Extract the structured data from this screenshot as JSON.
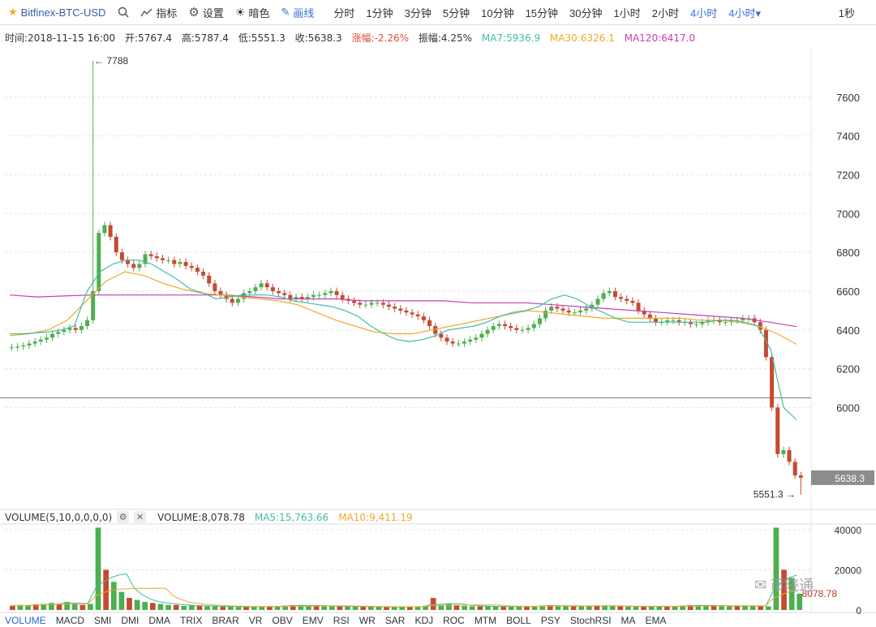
{
  "toolbar": {
    "symbol": "Bitfinex-BTC-USD",
    "buttons": [
      "指标",
      "设置",
      "暗色",
      "画线"
    ],
    "intervals": [
      "分时",
      "1分钟",
      "3分钟",
      "5分钟",
      "10分钟",
      "15分钟",
      "30分钟",
      "1小时",
      "2小时",
      "4小时",
      "4小时▾"
    ],
    "right_label": "1秒"
  },
  "info": {
    "time": "时间:2018-11-15 16:00",
    "open": "开:5767.4",
    "high": "高:5787.4",
    "low": "低:5551.3",
    "close": "收:5638.3",
    "change": "涨幅:-2.26%",
    "amplitude": "振幅:4.25%",
    "ma7": "MA7:5936.9",
    "ma30": "MA30:6326.1",
    "ma120": "MA120:6417.0"
  },
  "volume_info": {
    "label": "VOLUME(5,10,0,0,0,0)",
    "volume": "VOLUME:8,078.78",
    "ma5": "MA5:15,763.66",
    "ma10": "MA10:9,411.19"
  },
  "indicators": [
    "VOLUME",
    "MACD",
    "SMI",
    "DMI",
    "DMA",
    "TRIX",
    "BRAR",
    "VR",
    "OBV",
    "EMV",
    "RSI",
    "WR",
    "SAR",
    "KDJ",
    "ROC",
    "MTM",
    "BOLL",
    "PSY",
    "StochRSI",
    "MA",
    "EMA"
  ],
  "watermark": "币晓通",
  "colors": {
    "up": "#4caf50",
    "down": "#c64a32",
    "ma7": "#3fbfa5",
    "ma30": "#f0a828",
    "ma120": "#c83db5",
    "price_tag": "#8c8c8c"
  },
  "chart_data": [
    {
      "type": "candlestick",
      "title": "",
      "y_ticks": [
        6000,
        6200,
        6400,
        6600,
        6800,
        7000,
        7200,
        7400,
        7600
      ],
      "ylim": [
        5500,
        7850
      ],
      "grid": true,
      "max_label": "← 7788",
      "min_label": "5551.3 →",
      "last_price_label": "5638.3",
      "horizontal_line": 6050,
      "close_series": [
        6310,
        6315,
        6320,
        6330,
        6340,
        6350,
        6360,
        6380,
        6390,
        6400,
        6410,
        6400,
        6420,
        6450,
        6600,
        6900,
        6940,
        6880,
        6800,
        6760,
        6740,
        6720,
        6740,
        6790,
        6780,
        6770,
        6760,
        6760,
        6740,
        6750,
        6730,
        6720,
        6700,
        6680,
        6640,
        6600,
        6580,
        6560,
        6540,
        6560,
        6590,
        6600,
        6620,
        6640,
        6620,
        6600,
        6590,
        6580,
        6560,
        6570,
        6560,
        6570,
        6580,
        6580,
        6590,
        6600,
        6580,
        6560,
        6550,
        6540,
        6530,
        6530,
        6540,
        6540,
        6530,
        6520,
        6510,
        6500,
        6490,
        6480,
        6470,
        6450,
        6420,
        6380,
        6360,
        6340,
        6330,
        6330,
        6340,
        6350,
        6360,
        6380,
        6400,
        6420,
        6430,
        6420,
        6410,
        6400,
        6400,
        6410,
        6430,
        6460,
        6500,
        6520,
        6510,
        6500,
        6490,
        6490,
        6500,
        6510,
        6530,
        6560,
        6590,
        6600,
        6570,
        6560,
        6550,
        6540,
        6500,
        6480,
        6460,
        6440,
        6440,
        6450,
        6450,
        6440,
        6440,
        6430,
        6430,
        6440,
        6450,
        6450,
        6440,
        6440,
        6450,
        6450,
        6460,
        6460,
        6440,
        6400,
        6260,
        6000,
        5760,
        5780,
        5720,
        5650,
        5638.3
      ],
      "ma7_series": [
        6380,
        6380,
        6385,
        6390,
        6400,
        6420,
        6600,
        6700,
        6740,
        6760,
        6760,
        6740,
        6700,
        6660,
        6610,
        6590,
        6560,
        6570,
        6580,
        6580,
        6580,
        6570,
        6550,
        6540,
        6530,
        6520,
        6500,
        6470,
        6420,
        6380,
        6350,
        6340,
        6350,
        6370,
        6400,
        6410,
        6420,
        6440,
        6470,
        6490,
        6500,
        6520,
        6560,
        6580,
        6560,
        6520,
        6490,
        6460,
        6440,
        6440,
        6440,
        6440,
        6440,
        6440,
        6440,
        6450,
        6450,
        6440,
        6420,
        6300,
        6000,
        5936.9
      ],
      "ma30_series": [
        6370,
        6380,
        6400,
        6450,
        6550,
        6650,
        6700,
        6680,
        6640,
        6610,
        6590,
        6580,
        6570,
        6560,
        6550,
        6530,
        6490,
        6450,
        6420,
        6390,
        6380,
        6380,
        6400,
        6420,
        6440,
        6460,
        6480,
        6500,
        6490,
        6480,
        6470,
        6460,
        6460,
        6460,
        6460,
        6460,
        6450,
        6450,
        6440,
        6420,
        6380,
        6326.1
      ],
      "ma120_series": [
        6580,
        6570,
        6575,
        6580,
        6580,
        6580,
        6580,
        6580,
        6580,
        6570,
        6560,
        6560,
        6560,
        6550,
        6550,
        6550,
        6550,
        6540,
        6540,
        6540,
        6530,
        6520,
        6510,
        6500,
        6490,
        6480,
        6470,
        6460,
        6440,
        6417.0
      ]
    },
    {
      "type": "bar",
      "title": "",
      "y_ticks": [
        0,
        20000,
        40000
      ],
      "ylim": [
        0,
        42000
      ],
      "last_label": "8078.78",
      "values": [
        2000,
        2500,
        2200,
        2800,
        3000,
        3500,
        3000,
        4000,
        3500,
        2500,
        3000,
        41000,
        20000,
        14000,
        9000,
        6000,
        5000,
        4000,
        3500,
        3000,
        2500,
        2500,
        2000,
        2200,
        2000,
        1800,
        1800,
        1600,
        1700,
        1500,
        1500,
        1600,
        1700,
        1800,
        2000,
        2200,
        2400,
        2500,
        2200,
        2000,
        1800,
        1800,
        1800,
        1700,
        1700,
        1600,
        1600,
        1500,
        1500,
        1500,
        1600,
        1700,
        1800,
        2000,
        6000,
        2500,
        3000,
        2200,
        2000,
        1800,
        1800,
        1800,
        1700,
        1700,
        1600,
        1600,
        1800,
        2000,
        2200,
        2400,
        2200,
        2000,
        1800,
        1900,
        2000,
        2100,
        2200,
        2000,
        1800,
        1700,
        1600,
        1600,
        1700,
        1800,
        1900,
        2000,
        2200,
        2400,
        2500,
        2200,
        2000,
        1800,
        1900,
        2000,
        2100,
        2000,
        1800,
        1800,
        41000,
        20000,
        16000,
        8078.78
      ]
    }
  ]
}
